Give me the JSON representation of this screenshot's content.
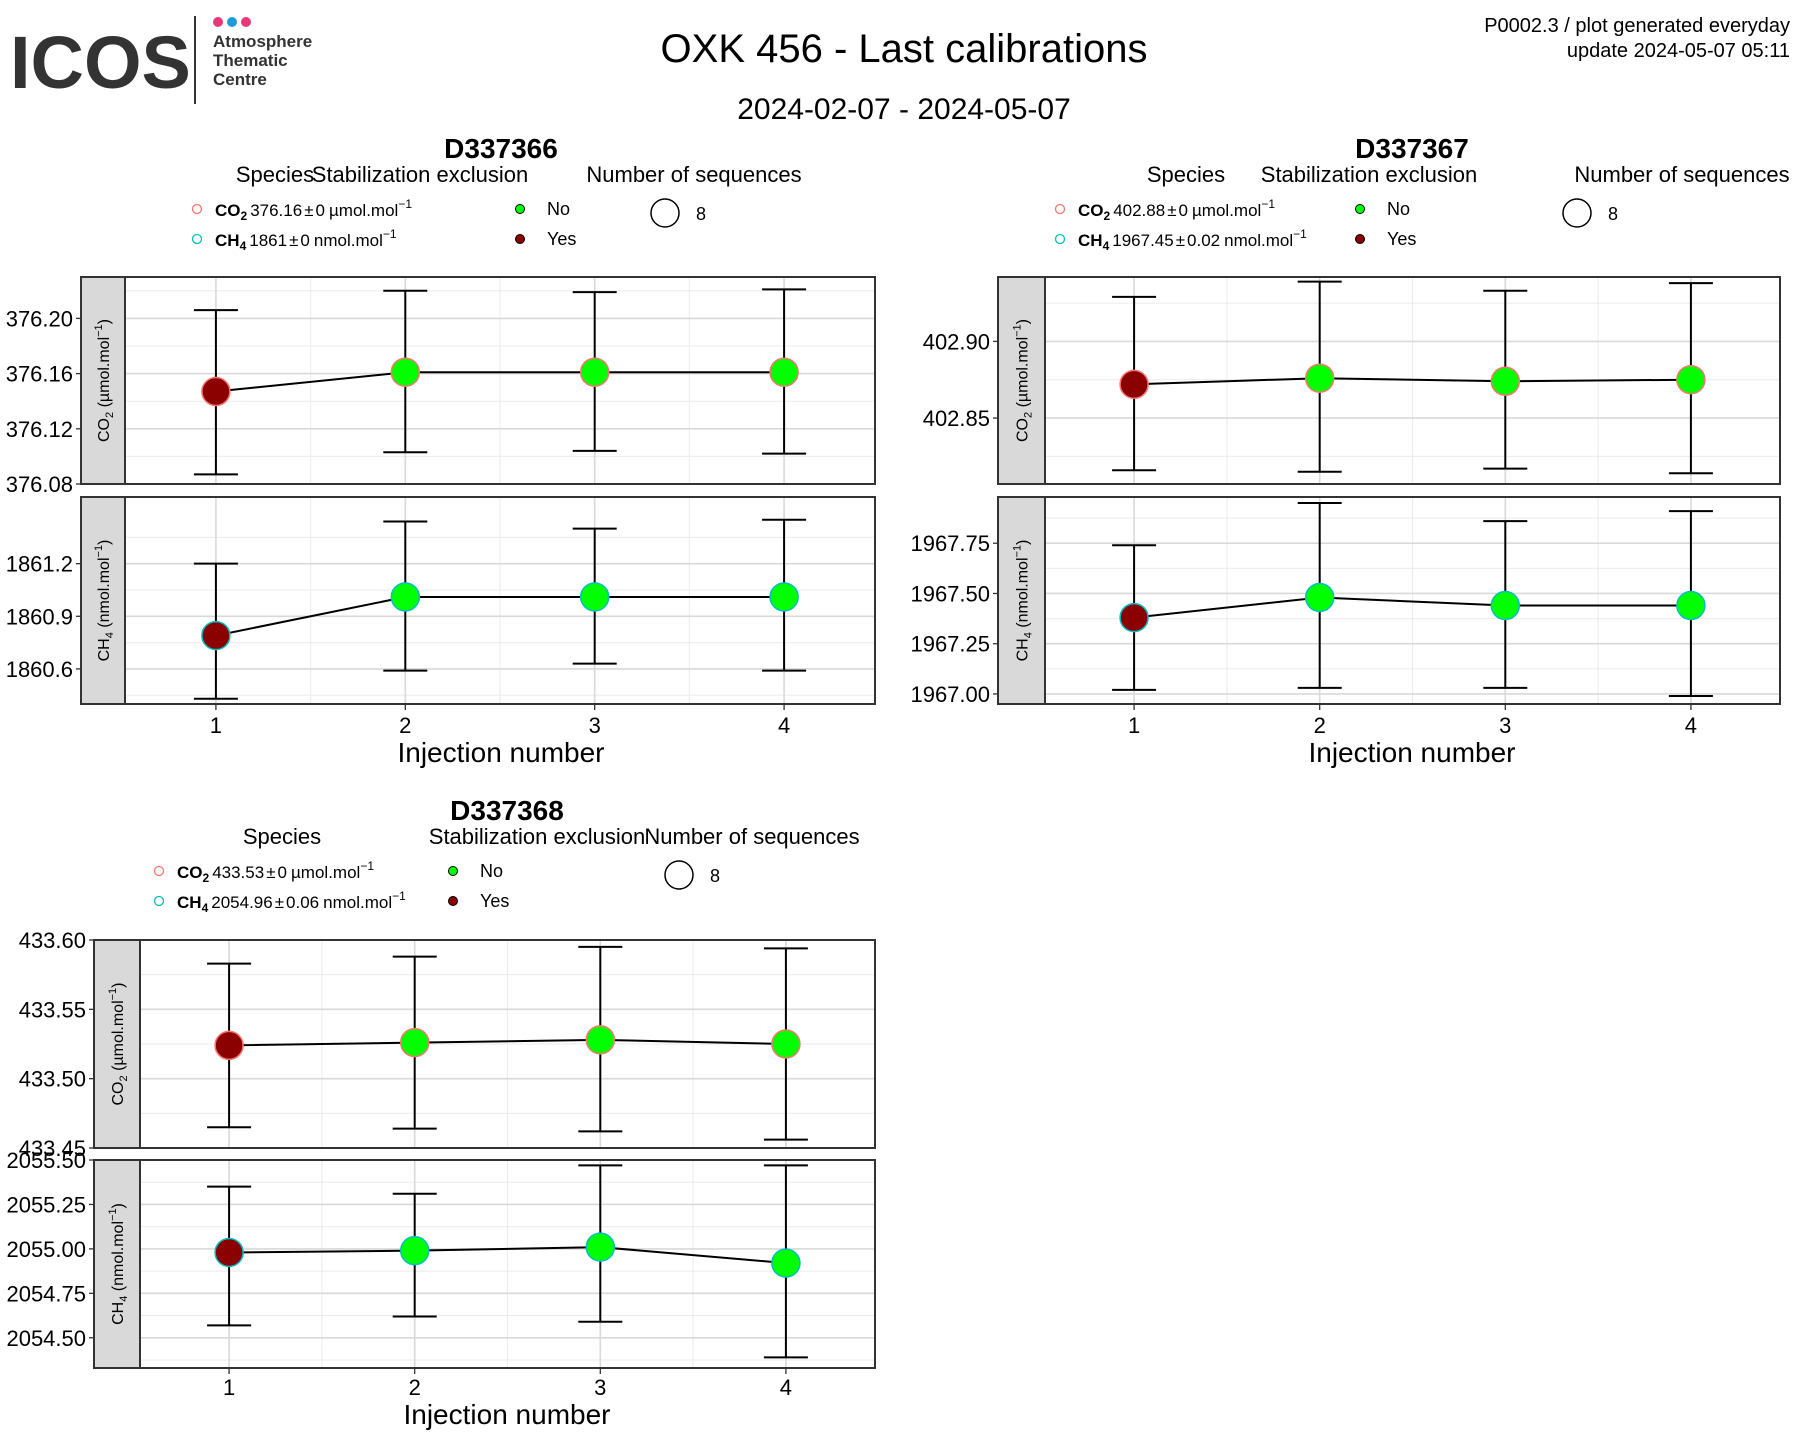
{
  "header": {
    "logo_word": "ICOS",
    "logo_sub": [
      "Atmosphere",
      "Thematic",
      "Centre"
    ],
    "title": "OXK 456 - Last calibrations",
    "subtitle": "2024-02-07 - 2024-05-07",
    "info_line1": "P0002.3 / plot generated everyday",
    "info_line2": "update  2024-05-07 05:11"
  },
  "colors": {
    "not_excluded": "#00ff00",
    "excluded": "#8b0000",
    "co2_outline": "#f8766d",
    "ch4_outline": "#00bfc4",
    "strip_bg": "#d9d9d9"
  },
  "legend_titles": {
    "species": "Species",
    "stabilization": "Stabilization exclusion",
    "sequences": "Number of sequences"
  },
  "stab_labels": [
    "No",
    "Yes"
  ],
  "sequences_value": "8",
  "chart_data": [
    {
      "type": "scatter",
      "title": "D337366",
      "xlabel": "Injection number",
      "x": [
        1,
        2,
        3,
        4
      ],
      "x_ticks": [
        "1",
        "2",
        "3",
        "4"
      ],
      "legend": {
        "co2": {
          "species": "CO",
          "sub": "2",
          "value": "376.16",
          "pm": "±",
          "unc": "0",
          "unit": "µmol.mol",
          "sup": "−1"
        },
        "ch4": {
          "species": "CH",
          "sub": "4",
          "value": "1861",
          "pm": "±",
          "unc": "0",
          "unit": "nmol.mol",
          "sup": "−1"
        }
      },
      "panels": [
        {
          "strip_label": "CO",
          "strip_sub": "2",
          "strip_unit": " (µmol.mol",
          "strip_sup": "−1",
          "strip_end": ")",
          "ylim": [
            376.08,
            376.23
          ],
          "y_ticks": [
            376.08,
            376.12,
            376.16,
            376.2
          ],
          "y_tick_labels": [
            "376.08",
            "376.12",
            "376.16",
            "376.20"
          ],
          "values": [
            376.147,
            376.161,
            376.161,
            376.161
          ],
          "err_low": [
            376.087,
            376.103,
            376.104,
            376.102
          ],
          "err_high": [
            376.206,
            376.22,
            376.219,
            376.221
          ],
          "excluded": [
            true,
            false,
            false,
            false
          ]
        },
        {
          "strip_label": "CH",
          "strip_sub": "4",
          "strip_unit": " (nmol.mol",
          "strip_sup": "−1",
          "strip_end": ")",
          "ylim": [
            1860.4,
            1861.58
          ],
          "y_ticks": [
            1860.6,
            1860.9,
            1861.2
          ],
          "y_tick_labels": [
            "1860.6",
            "1860.9",
            "1861.2"
          ],
          "values": [
            1860.79,
            1861.01,
            1861.01,
            1861.01
          ],
          "err_low": [
            1860.43,
            1860.59,
            1860.63,
            1860.59
          ],
          "err_high": [
            1861.2,
            1861.44,
            1861.4,
            1861.45
          ],
          "excluded": [
            true,
            false,
            false,
            false
          ]
        }
      ]
    },
    {
      "type": "scatter",
      "title": "D337367",
      "xlabel": "Injection number",
      "x": [
        1,
        2,
        3,
        4
      ],
      "x_ticks": [
        "1",
        "2",
        "3",
        "4"
      ],
      "legend": {
        "co2": {
          "species": "CO",
          "sub": "2",
          "value": "402.88",
          "pm": "±",
          "unc": "0",
          "unit": "µmol.mol",
          "sup": "−1"
        },
        "ch4": {
          "species": "CH",
          "sub": "4",
          "value": "1967.45",
          "pm": "±",
          "unc": "0.02",
          "unit": "nmol.mol",
          "sup": "−1"
        }
      },
      "panels": [
        {
          "strip_label": "CO",
          "strip_sub": "2",
          "strip_unit": " (µmol.mol",
          "strip_sup": "−1",
          "strip_end": ")",
          "ylim": [
            402.807,
            402.942
          ],
          "y_ticks": [
            402.85,
            402.9
          ],
          "y_tick_labels": [
            "402.85",
            "402.90"
          ],
          "values": [
            402.872,
            402.876,
            402.874,
            402.875
          ],
          "err_low": [
            402.816,
            402.815,
            402.817,
            402.814
          ],
          "err_high": [
            402.929,
            402.939,
            402.933,
            402.938
          ],
          "excluded": [
            true,
            false,
            false,
            false
          ]
        },
        {
          "strip_label": "CH",
          "strip_sub": "4",
          "strip_unit": " (nmol.mol",
          "strip_sup": "−1",
          "strip_end": ")",
          "ylim": [
            1966.95,
            1967.98
          ],
          "y_ticks": [
            1967.0,
            1967.25,
            1967.5,
            1967.75
          ],
          "y_tick_labels": [
            "1967.00",
            "1967.25",
            "1967.50",
            "1967.75"
          ],
          "values": [
            1967.38,
            1967.48,
            1967.44,
            1967.44
          ],
          "err_low": [
            1967.02,
            1967.03,
            1967.03,
            1966.99
          ],
          "err_high": [
            1967.74,
            1967.95,
            1967.86,
            1967.91
          ],
          "excluded": [
            true,
            false,
            false,
            false
          ]
        }
      ]
    },
    {
      "type": "scatter",
      "title": "D337368",
      "xlabel": "Injection number",
      "x": [
        1,
        2,
        3,
        4
      ],
      "x_ticks": [
        "1",
        "2",
        "3",
        "4"
      ],
      "legend": {
        "co2": {
          "species": "CO",
          "sub": "2",
          "value": "433.53",
          "pm": "±",
          "unc": "0",
          "unit": "µmol.mol",
          "sup": "−1"
        },
        "ch4": {
          "species": "CH",
          "sub": "4",
          "value": "2054.96",
          "pm": "±",
          "unc": "0.06",
          "unit": "nmol.mol",
          "sup": "−1"
        }
      },
      "panels": [
        {
          "strip_label": "CO",
          "strip_sub": "2",
          "strip_unit": " (µmol.mol",
          "strip_sup": "−1",
          "strip_end": ")",
          "ylim": [
            433.45,
            433.6
          ],
          "y_ticks": [
            433.45,
            433.5,
            433.55,
            433.6
          ],
          "y_tick_labels": [
            "433.45",
            "433.50",
            "433.55",
            "433.60"
          ],
          "values": [
            433.524,
            433.526,
            433.528,
            433.525
          ],
          "err_low": [
            433.465,
            433.464,
            433.462,
            433.456
          ],
          "err_high": [
            433.583,
            433.588,
            433.595,
            433.594
          ],
          "excluded": [
            true,
            false,
            false,
            false
          ]
        },
        {
          "strip_label": "CH",
          "strip_sub": "4",
          "strip_unit": " (nmol.mol",
          "strip_sup": "−1",
          "strip_end": ")",
          "ylim": [
            2054.33,
            2055.5
          ],
          "y_ticks": [
            2054.5,
            2054.75,
            2055.0,
            2055.25,
            2055.5
          ],
          "y_tick_labels": [
            "2054.50",
            "2054.75",
            "2055.00",
            "2055.25",
            "2055.50"
          ],
          "values": [
            2054.98,
            2054.99,
            2055.01,
            2054.92
          ],
          "err_low": [
            2054.57,
            2054.62,
            2054.59,
            2054.39
          ],
          "err_high": [
            2055.35,
            2055.31,
            2055.47,
            2055.47
          ],
          "excluded": [
            true,
            false,
            false,
            false
          ]
        }
      ]
    }
  ]
}
